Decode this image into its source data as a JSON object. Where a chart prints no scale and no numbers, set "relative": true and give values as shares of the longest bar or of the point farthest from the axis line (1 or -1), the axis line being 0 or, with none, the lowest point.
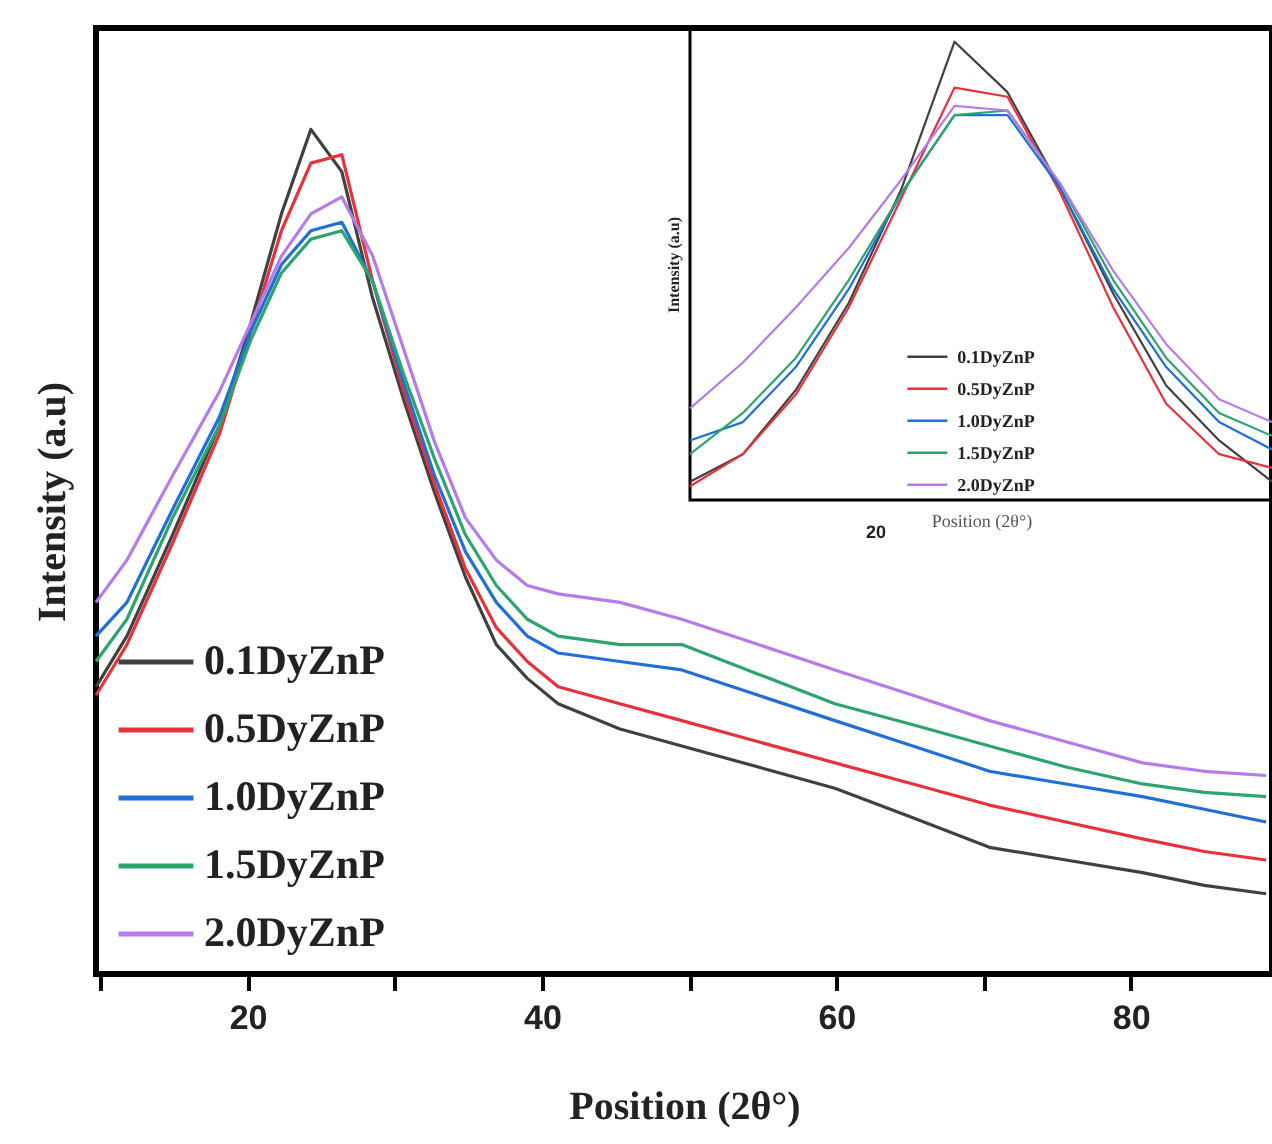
{
  "chart_data": [
    {
      "type": "line",
      "xlabel": "Position (2θ°)",
      "ylabel": "Intensity (a.u)",
      "relative": true,
      "xlim": [
        9.7,
        89.6
      ],
      "xticks": [
        {
          "value": 10,
          "label": null
        },
        20,
        {
          "value": 30,
          "label": null
        },
        40,
        {
          "value": 50,
          "label": null
        },
        60,
        {
          "value": 70,
          "label": null
        },
        80
      ],
      "legend": "bottom left",
      "grid": false,
      "x": [
        9.7,
        11.8,
        14.9,
        18.1,
        20.2,
        22.3,
        24.3,
        26.4,
        28.5,
        30.6,
        32.7,
        34.8,
        36.9,
        39,
        41.1,
        45.3,
        49.5,
        54.7,
        59.9,
        65.2,
        70.4,
        75.6,
        80.8,
        85,
        89.2
      ],
      "series": [
        {
          "name": "0.1DyZnP",
          "color": "#404040",
          "values": [
            0.34,
            0.4,
            0.52,
            0.65,
            0.77,
            0.9,
            1.0,
            0.95,
            0.8,
            0.68,
            0.57,
            0.47,
            0.39,
            0.35,
            0.32,
            0.29,
            0.27,
            0.245,
            0.22,
            0.185,
            0.15,
            0.135,
            0.12,
            0.105,
            0.095
          ]
        },
        {
          "name": "0.5DyZnP",
          "color": "#e8313a",
          "values": [
            0.33,
            0.39,
            0.51,
            0.64,
            0.76,
            0.88,
            0.96,
            0.97,
            0.82,
            0.69,
            0.58,
            0.48,
            0.41,
            0.37,
            0.34,
            0.32,
            0.3,
            0.275,
            0.25,
            0.225,
            0.2,
            0.18,
            0.16,
            0.145,
            0.135
          ]
        },
        {
          "name": "1.0DyZnP",
          "color": "#1f6fd6",
          "values": [
            0.4,
            0.44,
            0.55,
            0.66,
            0.76,
            0.84,
            0.88,
            0.89,
            0.82,
            0.7,
            0.59,
            0.5,
            0.44,
            0.4,
            0.38,
            0.37,
            0.36,
            0.33,
            0.3,
            0.27,
            0.24,
            0.225,
            0.21,
            0.195,
            0.18
          ]
        },
        {
          "name": "1.5DyZnP",
          "color": "#2ca46e",
          "values": [
            0.37,
            0.42,
            0.54,
            0.65,
            0.75,
            0.83,
            0.87,
            0.88,
            0.82,
            0.71,
            0.61,
            0.52,
            0.46,
            0.42,
            0.4,
            0.39,
            0.39,
            0.355,
            0.32,
            0.295,
            0.27,
            0.245,
            0.225,
            0.215,
            0.21
          ]
        },
        {
          "name": "2.0DyZnP",
          "color": "#b57be8",
          "values": [
            0.44,
            0.49,
            0.59,
            0.69,
            0.77,
            0.85,
            0.9,
            0.92,
            0.85,
            0.74,
            0.63,
            0.54,
            0.49,
            0.46,
            0.45,
            0.44,
            0.42,
            0.39,
            0.36,
            0.33,
            0.3,
            0.275,
            0.25,
            0.24,
            0.235
          ]
        }
      ]
    },
    {
      "type": "line",
      "xlabel": "Position (2θ°)",
      "ylabel": "Intensity (a.u)",
      "relative": true,
      "annotations": [
        "20"
      ],
      "legend": "bottom",
      "grid": false,
      "categories": [
        null,
        null,
        null,
        null,
        null,
        null,
        null,
        null,
        null,
        null,
        null,
        null
      ],
      "series": [
        {
          "name": "0.1DyZnP",
          "color": "#404040",
          "values": [
            0.04,
            0.1,
            0.24,
            0.43,
            0.68,
            1.0,
            0.89,
            0.68,
            0.45,
            0.25,
            0.13,
            0.04
          ]
        },
        {
          "name": "0.5DyZnP",
          "color": "#e8313a",
          "values": [
            0.03,
            0.1,
            0.23,
            0.42,
            0.66,
            0.9,
            0.88,
            0.67,
            0.42,
            0.21,
            0.1,
            0.07
          ]
        },
        {
          "name": "1.0DyZnP",
          "color": "#1f6fd6",
          "values": [
            0.13,
            0.17,
            0.29,
            0.46,
            0.67,
            0.84,
            0.84,
            0.68,
            0.46,
            0.29,
            0.17,
            0.11
          ]
        },
        {
          "name": "1.5DyZnP",
          "color": "#2ca46e",
          "values": [
            0.1,
            0.19,
            0.31,
            0.48,
            0.67,
            0.84,
            0.85,
            0.69,
            0.48,
            0.31,
            0.19,
            0.14
          ]
        },
        {
          "name": "2.0DyZnP",
          "color": "#b57be8",
          "values": [
            0.2,
            0.3,
            0.42,
            0.55,
            0.7,
            0.86,
            0.85,
            0.69,
            0.5,
            0.34,
            0.22,
            0.17
          ]
        }
      ]
    }
  ]
}
